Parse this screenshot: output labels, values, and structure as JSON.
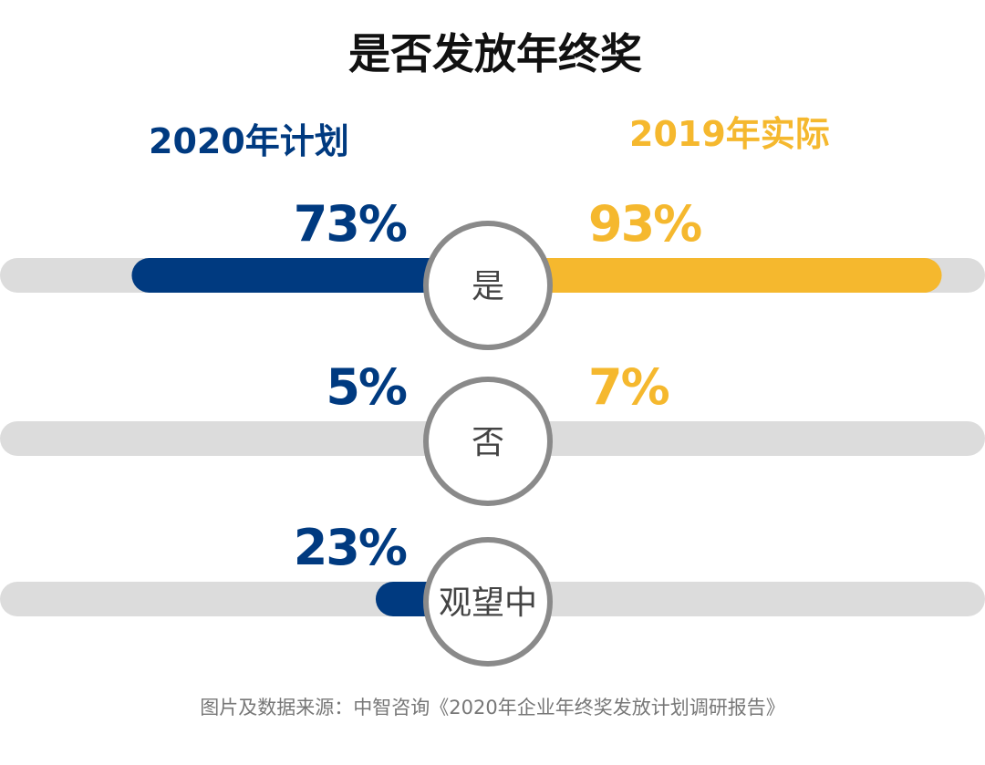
{
  "chart_data": {
    "type": "bar",
    "orientation": "horizontal-diverging",
    "title": "是否发放年终奖",
    "categories": [
      "是",
      "否",
      "观望中"
    ],
    "series": [
      {
        "name": "2020年计划",
        "side": "left",
        "color": "#003a80",
        "values": [
          73,
          5,
          23
        ],
        "labels": [
          "73%",
          "5%",
          "23%"
        ]
      },
      {
        "name": "2019年实际",
        "side": "right",
        "color": "#f5b82e",
        "values": [
          93,
          7,
          null
        ],
        "labels": [
          "93%",
          "7%",
          ""
        ]
      }
    ],
    "xlim": [
      0,
      100
    ],
    "unit": "%",
    "track_color": "#dcdcdc",
    "circle_color": "#8a8a8a",
    "source": "图片及数据来源：中智咨询《2020年企业年终奖发放计划调研报告》"
  }
}
